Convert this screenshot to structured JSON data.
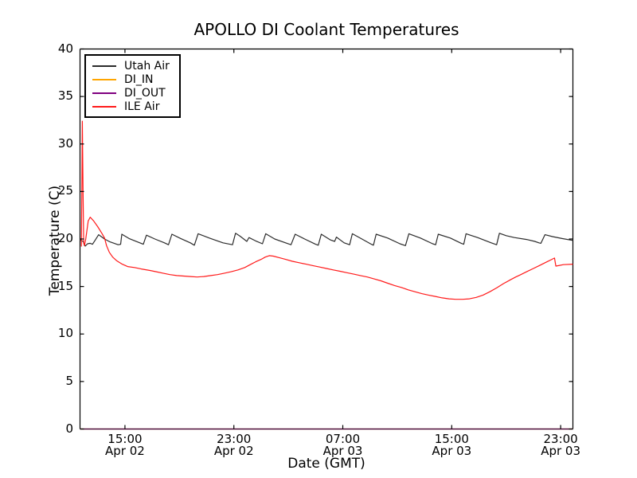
{
  "figure": {
    "background": "#ffffff",
    "spine_color": "#000000"
  },
  "chart_data": {
    "type": "line",
    "title": "APOLLO DI Coolant Temperatures",
    "xlabel": "Date (GMT)",
    "ylabel": "Temperature (C)",
    "ylim": [
      0,
      40
    ],
    "yticks": [
      0,
      5,
      10,
      15,
      20,
      25,
      30,
      35,
      40
    ],
    "xlim_hours": [
      11.7,
      47.9
    ],
    "xticks": [
      {
        "hours": 15,
        "time": "15:00",
        "date": "Apr 02"
      },
      {
        "hours": 23,
        "time": "23:00",
        "date": "Apr 02"
      },
      {
        "hours": 31,
        "time": "07:00",
        "date": "Apr 03"
      },
      {
        "hours": 39,
        "time": "15:00",
        "date": "Apr 03"
      },
      {
        "hours": 47,
        "time": "23:00",
        "date": "Apr 03"
      }
    ],
    "grid": false,
    "legend_position": "upper left",
    "series": [
      {
        "name": "Utah Air",
        "color": "#2b2b2b",
        "points": [
          [
            11.7,
            19.9
          ],
          [
            11.92,
            19.75
          ],
          [
            12.08,
            19.25
          ],
          [
            12.25,
            19.5
          ],
          [
            12.45,
            19.55
          ],
          [
            12.62,
            19.45
          ],
          [
            12.82,
            19.9
          ],
          [
            13.07,
            20.45
          ],
          [
            13.5,
            20.0
          ],
          [
            13.9,
            19.7
          ],
          [
            14.5,
            19.4
          ],
          [
            14.68,
            19.45
          ],
          [
            14.77,
            20.5
          ],
          [
            15.3,
            20.05
          ],
          [
            16.0,
            19.65
          ],
          [
            16.35,
            19.45
          ],
          [
            16.58,
            20.4
          ],
          [
            17.2,
            20.0
          ],
          [
            17.9,
            19.6
          ],
          [
            18.2,
            19.4
          ],
          [
            18.45,
            20.5
          ],
          [
            19.1,
            20.05
          ],
          [
            19.8,
            19.6
          ],
          [
            20.1,
            19.35
          ],
          [
            20.37,
            20.55
          ],
          [
            21.2,
            20.1
          ],
          [
            22.2,
            19.6
          ],
          [
            22.9,
            19.4
          ],
          [
            23.12,
            20.6
          ],
          [
            23.45,
            20.3
          ],
          [
            23.95,
            19.75
          ],
          [
            24.11,
            20.15
          ],
          [
            24.6,
            19.8
          ],
          [
            25.1,
            19.5
          ],
          [
            25.34,
            20.55
          ],
          [
            26.0,
            20.0
          ],
          [
            26.9,
            19.55
          ],
          [
            27.2,
            19.4
          ],
          [
            27.5,
            20.5
          ],
          [
            28.2,
            20.0
          ],
          [
            29.0,
            19.45
          ],
          [
            29.2,
            19.35
          ],
          [
            29.42,
            20.5
          ],
          [
            30.1,
            19.9
          ],
          [
            30.4,
            19.75
          ],
          [
            30.53,
            20.2
          ],
          [
            31.1,
            19.6
          ],
          [
            31.5,
            19.4
          ],
          [
            31.7,
            20.55
          ],
          [
            32.4,
            20.0
          ],
          [
            33.1,
            19.45
          ],
          [
            33.25,
            19.35
          ],
          [
            33.45,
            20.5
          ],
          [
            34.3,
            20.1
          ],
          [
            35.2,
            19.5
          ],
          [
            35.6,
            19.3
          ],
          [
            35.85,
            20.55
          ],
          [
            36.7,
            20.1
          ],
          [
            37.6,
            19.5
          ],
          [
            37.82,
            19.4
          ],
          [
            38.01,
            20.5
          ],
          [
            38.9,
            20.1
          ],
          [
            39.7,
            19.55
          ],
          [
            39.88,
            19.45
          ],
          [
            40.05,
            20.55
          ],
          [
            40.9,
            20.15
          ],
          [
            41.9,
            19.6
          ],
          [
            42.3,
            19.4
          ],
          [
            42.5,
            20.6
          ],
          [
            43.0,
            20.35
          ],
          [
            43.6,
            20.15
          ],
          [
            44.5,
            19.95
          ],
          [
            45.1,
            19.75
          ],
          [
            45.4,
            19.6
          ],
          [
            45.55,
            19.55
          ],
          [
            45.85,
            20.45
          ],
          [
            46.4,
            20.25
          ],
          [
            47.1,
            20.05
          ],
          [
            47.9,
            19.85
          ]
        ]
      },
      {
        "name": "DI_IN",
        "color": "#ffa500",
        "points": [
          [
            11.7,
            0
          ],
          [
            47.9,
            0
          ]
        ]
      },
      {
        "name": "DI_OUT",
        "color": "#800080",
        "points": [
          [
            11.7,
            0
          ],
          [
            47.9,
            0
          ]
        ]
      },
      {
        "name": "ILE Air",
        "color": "#ff1a1a",
        "points": [
          [
            11.8,
            19.2
          ],
          [
            11.84,
            26.0
          ],
          [
            11.87,
            32.4
          ],
          [
            11.92,
            25.0
          ],
          [
            11.97,
            19.6
          ],
          [
            12.02,
            19.3
          ],
          [
            12.12,
            20.0
          ],
          [
            12.3,
            21.9
          ],
          [
            12.45,
            22.3
          ],
          [
            12.7,
            21.9
          ],
          [
            13.0,
            21.3
          ],
          [
            13.3,
            20.6
          ],
          [
            13.5,
            20.1
          ],
          [
            13.65,
            19.3
          ],
          [
            13.85,
            18.6
          ],
          [
            14.1,
            18.1
          ],
          [
            14.4,
            17.7
          ],
          [
            14.8,
            17.35
          ],
          [
            15.2,
            17.1
          ],
          [
            15.7,
            17.0
          ],
          [
            16.2,
            16.85
          ],
          [
            16.8,
            16.7
          ],
          [
            17.3,
            16.55
          ],
          [
            17.8,
            16.4
          ],
          [
            18.3,
            16.25
          ],
          [
            18.8,
            16.15
          ],
          [
            19.3,
            16.1
          ],
          [
            19.8,
            16.05
          ],
          [
            20.3,
            16.0
          ],
          [
            20.8,
            16.05
          ],
          [
            21.3,
            16.15
          ],
          [
            21.8,
            16.25
          ],
          [
            22.3,
            16.4
          ],
          [
            22.8,
            16.55
          ],
          [
            23.3,
            16.75
          ],
          [
            23.8,
            17.0
          ],
          [
            24.2,
            17.3
          ],
          [
            24.6,
            17.6
          ],
          [
            25.0,
            17.85
          ],
          [
            25.3,
            18.1
          ],
          [
            25.6,
            18.25
          ],
          [
            25.9,
            18.2
          ],
          [
            26.3,
            18.05
          ],
          [
            26.8,
            17.85
          ],
          [
            27.3,
            17.65
          ],
          [
            27.8,
            17.5
          ],
          [
            28.3,
            17.35
          ],
          [
            28.8,
            17.2
          ],
          [
            29.3,
            17.05
          ],
          [
            29.8,
            16.9
          ],
          [
            30.3,
            16.75
          ],
          [
            30.8,
            16.6
          ],
          [
            31.3,
            16.45
          ],
          [
            31.8,
            16.3
          ],
          [
            32.3,
            16.15
          ],
          [
            32.8,
            16.0
          ],
          [
            33.3,
            15.8
          ],
          [
            33.8,
            15.6
          ],
          [
            34.3,
            15.35
          ],
          [
            34.8,
            15.1
          ],
          [
            35.3,
            14.9
          ],
          [
            35.8,
            14.65
          ],
          [
            36.3,
            14.45
          ],
          [
            36.8,
            14.25
          ],
          [
            37.3,
            14.1
          ],
          [
            37.8,
            13.95
          ],
          [
            38.3,
            13.8
          ],
          [
            38.8,
            13.7
          ],
          [
            39.3,
            13.65
          ],
          [
            39.8,
            13.65
          ],
          [
            40.3,
            13.7
          ],
          [
            40.8,
            13.85
          ],
          [
            41.3,
            14.1
          ],
          [
            41.8,
            14.45
          ],
          [
            42.3,
            14.85
          ],
          [
            42.8,
            15.3
          ],
          [
            43.3,
            15.7
          ],
          [
            43.7,
            16.0
          ],
          [
            44.0,
            16.2
          ],
          [
            44.5,
            16.55
          ],
          [
            45.0,
            16.9
          ],
          [
            45.5,
            17.25
          ],
          [
            46.0,
            17.6
          ],
          [
            46.35,
            17.85
          ],
          [
            46.55,
            18.0
          ],
          [
            46.65,
            17.15
          ],
          [
            46.85,
            17.2
          ],
          [
            47.2,
            17.3
          ],
          [
            47.9,
            17.35
          ]
        ]
      }
    ]
  }
}
